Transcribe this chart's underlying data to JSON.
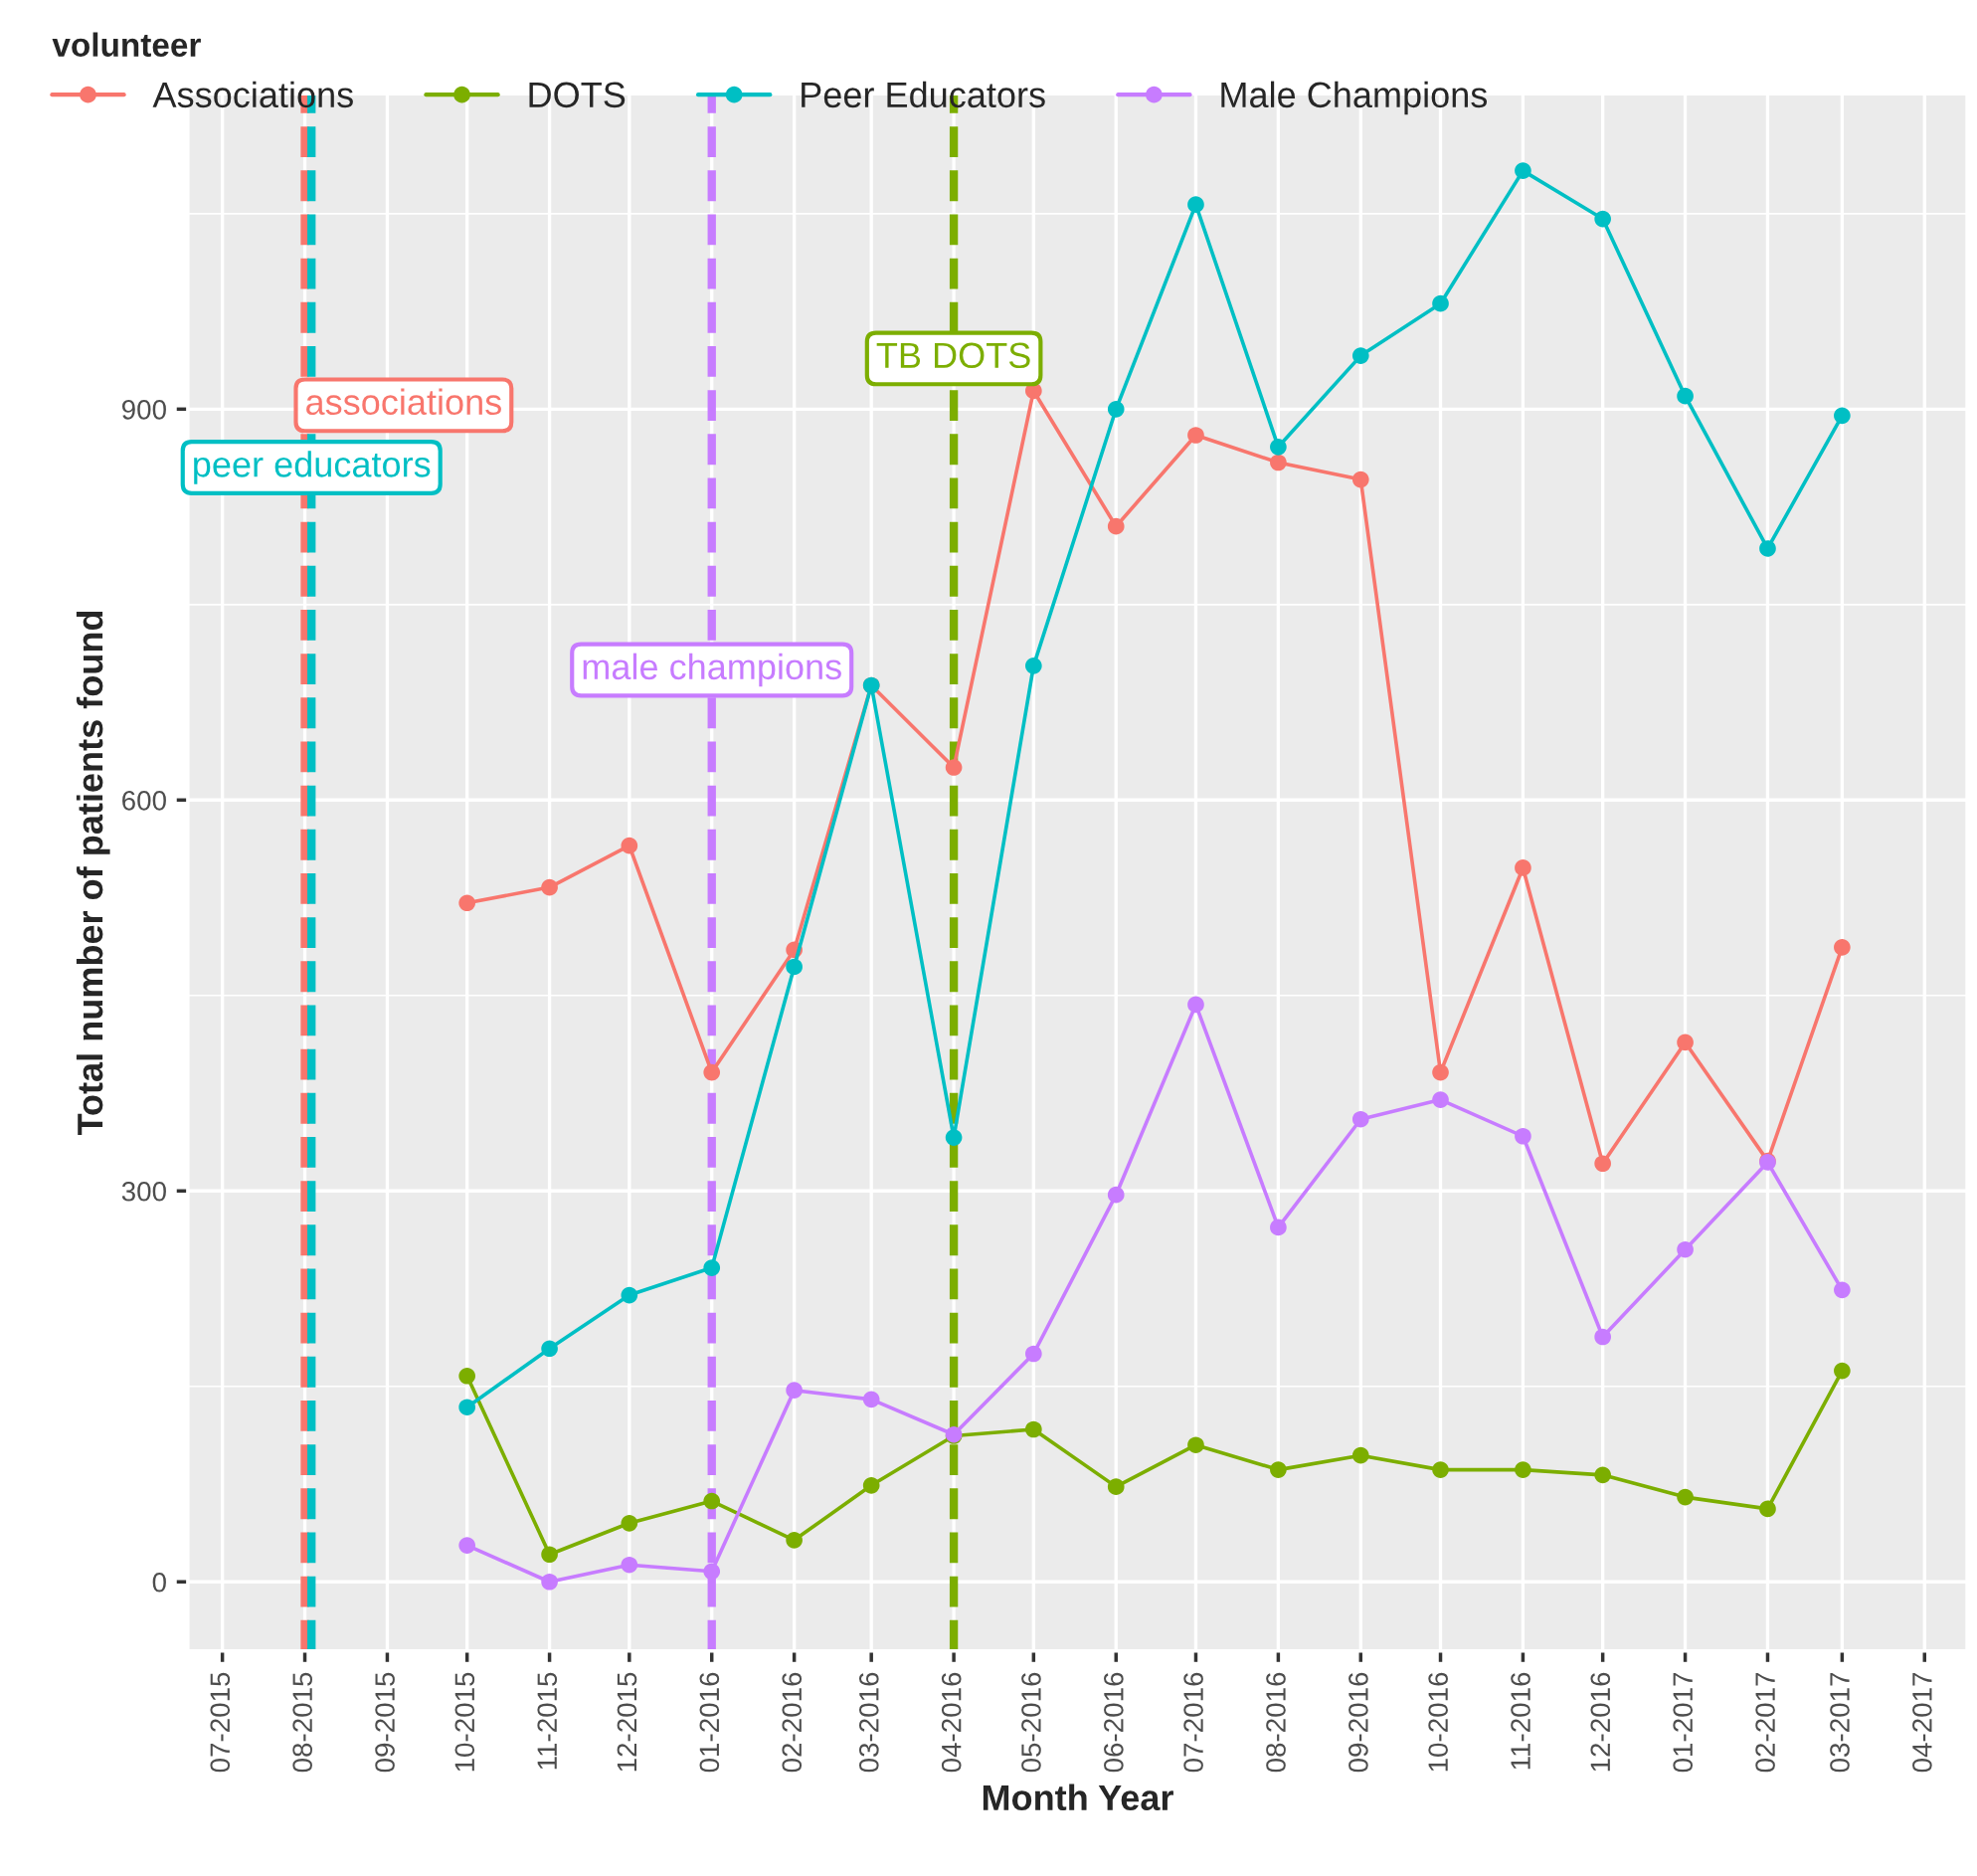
{
  "chart_data": {
    "type": "line",
    "xlabel": "Month Year",
    "ylabel": "Total number of patients found",
    "legend_title": "volunteer",
    "x": [
      "2015-10",
      "2015-11",
      "2015-12",
      "2016-01",
      "2016-02",
      "2016-03",
      "2016-04",
      "2016-05",
      "2016-06",
      "2016-07",
      "2016-08",
      "2016-09",
      "2016-10",
      "2016-11",
      "2016-12",
      "2017-01",
      "2017-02",
      "2017-03"
    ],
    "series": [
      {
        "name": "Associations",
        "color": "#f8766d",
        "values": [
          521,
          533,
          565,
          391,
          485,
          688,
          625,
          914,
          810,
          880,
          859,
          846,
          391,
          548,
          321,
          414,
          323,
          487
        ]
      },
      {
        "name": "DOTS",
        "color": "#7cae00",
        "values": [
          158,
          21,
          45,
          62,
          32,
          74,
          112,
          117,
          73,
          105,
          86,
          97,
          86,
          86,
          82,
          65,
          56,
          162
        ]
      },
      {
        "name": "Peer Educators",
        "color": "#00bfc4",
        "values": [
          134,
          179,
          220,
          241,
          472,
          688,
          341,
          703,
          900,
          1057,
          871,
          941,
          981,
          1083,
          1046,
          910,
          793,
          895
        ]
      },
      {
        "name": "Male Champions",
        "color": "#c77cff",
        "values": [
          28,
          0,
          13,
          8,
          147,
          140,
          113,
          175,
          297,
          443,
          272,
          355,
          370,
          342,
          188,
          255,
          322,
          224
        ]
      }
    ],
    "ref_lines": [
      {
        "axis": "x",
        "value": "2015-08",
        "label": "associations",
        "color": "#f8766d",
        "line_style": "dashed"
      },
      {
        "axis": "x",
        "value": "2015-08",
        "label": "peer educators",
        "color": "#00bfc4",
        "line_style": "dashed"
      },
      {
        "axis": "x",
        "value": "2016-01",
        "label": "male champions",
        "color": "#c77cff",
        "line_style": "dashed"
      },
      {
        "axis": "x",
        "value": "2016-04",
        "label": "TB DOTS",
        "color": "#7cae00",
        "line_style": "dashed"
      }
    ],
    "xlim": [
      "2015-06-18",
      "2017-04-17"
    ],
    "xticks": [
      {
        "value": "2015-07",
        "label": "07-2015"
      },
      {
        "value": "2015-08",
        "label": "08-2015"
      },
      {
        "value": "2015-09",
        "label": "09-2015"
      },
      {
        "value": "2015-10",
        "label": "10-2015"
      },
      {
        "value": "2015-11",
        "label": "11-2015"
      },
      {
        "value": "2015-12",
        "label": "12-2015"
      },
      {
        "value": "2016-01",
        "label": "01-2016"
      },
      {
        "value": "2016-02",
        "label": "02-2016"
      },
      {
        "value": "2016-03",
        "label": "03-2016"
      },
      {
        "value": "2016-04",
        "label": "04-2016"
      },
      {
        "value": "2016-05",
        "label": "05-2016"
      },
      {
        "value": "2016-06",
        "label": "06-2016"
      },
      {
        "value": "2016-07",
        "label": "07-2016"
      },
      {
        "value": "2016-08",
        "label": "08-2016"
      },
      {
        "value": "2016-09",
        "label": "09-2016"
      },
      {
        "value": "2016-10",
        "label": "10-2016"
      },
      {
        "value": "2016-11",
        "label": "11-2016"
      },
      {
        "value": "2016-12",
        "label": "12-2016"
      },
      {
        "value": "2017-01",
        "label": "01-2017"
      },
      {
        "value": "2017-02",
        "label": "02-2017"
      },
      {
        "value": "2017-03",
        "label": "03-2017"
      },
      {
        "value": "2017-04",
        "label": "04-2017"
      }
    ],
    "ylim": [
      -53,
      1142
    ],
    "yticks": [
      0,
      300,
      600,
      900
    ],
    "grid": true,
    "legend": "top",
    "marker": "circle",
    "line_style": "solid"
  }
}
